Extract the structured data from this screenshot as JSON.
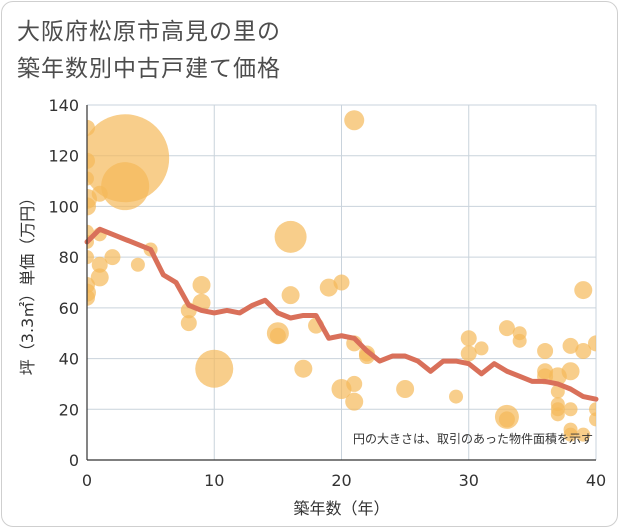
{
  "title_lines": [
    "大阪府松原市高見の里の",
    "築年数別中古戸建て価格"
  ],
  "chart_data": {
    "type": "scatter",
    "title": "大阪府松原市高見の里の築年数別中古戸建て価格",
    "xlabel": "築年数（年）",
    "ylabel": "坪（3.3㎡）単価（万円）",
    "xlim": [
      0,
      40
    ],
    "ylim": [
      0,
      140
    ],
    "x_ticks": [
      0,
      10,
      20,
      30,
      40
    ],
    "y_ticks": [
      0,
      20,
      40,
      60,
      80,
      100,
      120,
      140
    ],
    "grid": true,
    "note": "円の大きさは、取引のあった物件面積を示す",
    "colors": {
      "bubble": "#f5b95a",
      "trend": "#d9705a",
      "grid": "#c9d3dc"
    },
    "bubbles": [
      {
        "x": 0,
        "y": 131,
        "size": 8
      },
      {
        "x": 0,
        "y": 118,
        "size": 8
      },
      {
        "x": 0,
        "y": 111,
        "size": 7
      },
      {
        "x": 0,
        "y": 103,
        "size": 10
      },
      {
        "x": 0,
        "y": 100,
        "size": 9
      },
      {
        "x": 0,
        "y": 90,
        "size": 7
      },
      {
        "x": 0,
        "y": 86,
        "size": 7
      },
      {
        "x": 0,
        "y": 80,
        "size": 7
      },
      {
        "x": 0,
        "y": 69,
        "size": 8
      },
      {
        "x": 0,
        "y": 66,
        "size": 9
      },
      {
        "x": 0,
        "y": 64,
        "size": 8
      },
      {
        "x": 1,
        "y": 105,
        "size": 8
      },
      {
        "x": 1,
        "y": 89,
        "size": 7
      },
      {
        "x": 1,
        "y": 77,
        "size": 8
      },
      {
        "x": 1,
        "y": 72,
        "size": 9
      },
      {
        "x": 2,
        "y": 80,
        "size": 8
      },
      {
        "x": 3,
        "y": 119,
        "size": 44
      },
      {
        "x": 3,
        "y": 108,
        "size": 24
      },
      {
        "x": 4,
        "y": 77,
        "size": 7
      },
      {
        "x": 5,
        "y": 83,
        "size": 7
      },
      {
        "x": 8,
        "y": 59,
        "size": 8
      },
      {
        "x": 8,
        "y": 54,
        "size": 8
      },
      {
        "x": 9,
        "y": 69,
        "size": 9
      },
      {
        "x": 9,
        "y": 62,
        "size": 9
      },
      {
        "x": 10,
        "y": 36,
        "size": 19
      },
      {
        "x": 15,
        "y": 50,
        "size": 11
      },
      {
        "x": 15,
        "y": 49,
        "size": 8
      },
      {
        "x": 16,
        "y": 88,
        "size": 16
      },
      {
        "x": 16,
        "y": 65,
        "size": 9
      },
      {
        "x": 17,
        "y": 36,
        "size": 9
      },
      {
        "x": 18,
        "y": 53,
        "size": 8
      },
      {
        "x": 19,
        "y": 68,
        "size": 9
      },
      {
        "x": 20,
        "y": 70,
        "size": 8
      },
      {
        "x": 20,
        "y": 28,
        "size": 10
      },
      {
        "x": 21,
        "y": 134,
        "size": 10
      },
      {
        "x": 21,
        "y": 46,
        "size": 8
      },
      {
        "x": 21,
        "y": 30,
        "size": 8
      },
      {
        "x": 21,
        "y": 23,
        "size": 9
      },
      {
        "x": 22,
        "y": 42,
        "size": 8
      },
      {
        "x": 22,
        "y": 41,
        "size": 8
      },
      {
        "x": 25,
        "y": 28,
        "size": 9
      },
      {
        "x": 29,
        "y": 25,
        "size": 7
      },
      {
        "x": 30,
        "y": 48,
        "size": 8
      },
      {
        "x": 30,
        "y": 42,
        "size": 8
      },
      {
        "x": 31,
        "y": 44,
        "size": 7
      },
      {
        "x": 33,
        "y": 52,
        "size": 8
      },
      {
        "x": 33,
        "y": 17,
        "size": 12
      },
      {
        "x": 33,
        "y": 16,
        "size": 8
      },
      {
        "x": 34,
        "y": 50,
        "size": 7
      },
      {
        "x": 34,
        "y": 47,
        "size": 7
      },
      {
        "x": 36,
        "y": 43,
        "size": 8
      },
      {
        "x": 36,
        "y": 35,
        "size": 8
      },
      {
        "x": 36,
        "y": 33,
        "size": 8
      },
      {
        "x": 37,
        "y": 33,
        "size": 9
      },
      {
        "x": 37,
        "y": 27,
        "size": 7
      },
      {
        "x": 37,
        "y": 22,
        "size": 7
      },
      {
        "x": 37,
        "y": 20,
        "size": 7
      },
      {
        "x": 37,
        "y": 18,
        "size": 7
      },
      {
        "x": 38,
        "y": 45,
        "size": 8
      },
      {
        "x": 38,
        "y": 35,
        "size": 9
      },
      {
        "x": 38,
        "y": 20,
        "size": 7
      },
      {
        "x": 38,
        "y": 12,
        "size": 7
      },
      {
        "x": 38,
        "y": 10,
        "size": 7
      },
      {
        "x": 39,
        "y": 67,
        "size": 9
      },
      {
        "x": 39,
        "y": 43,
        "size": 8
      },
      {
        "x": 39,
        "y": 10,
        "size": 7
      },
      {
        "x": 40,
        "y": 46,
        "size": 8
      },
      {
        "x": 40,
        "y": 20,
        "size": 7
      },
      {
        "x": 40,
        "y": 16,
        "size": 7
      }
    ],
    "trend": {
      "x": [
        0,
        1,
        2,
        3,
        4,
        5,
        6,
        7,
        8,
        9,
        10,
        11,
        12,
        13,
        14,
        15,
        16,
        17,
        18,
        19,
        20,
        21,
        22,
        23,
        24,
        25,
        26,
        27,
        28,
        29,
        30,
        31,
        32,
        33,
        34,
        35,
        36,
        37,
        38,
        39,
        40
      ],
      "y": [
        86,
        91,
        89,
        87,
        85,
        83,
        73,
        70,
        61,
        59,
        58,
        59,
        58,
        61,
        63,
        58,
        56,
        57,
        57,
        48,
        49,
        48,
        43,
        39,
        41,
        41,
        39,
        35,
        39,
        39,
        38,
        34,
        38,
        35,
        33,
        31,
        31,
        30,
        28,
        25,
        24
      ]
    }
  }
}
